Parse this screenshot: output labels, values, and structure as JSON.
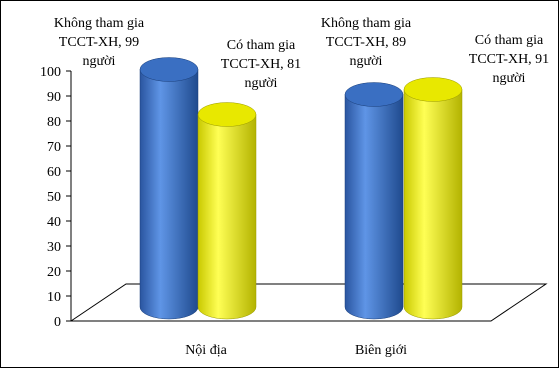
{
  "chart_data": {
    "type": "bar",
    "style": "3d-cylinder",
    "categories": [
      "Nội địa",
      "Biên giới"
    ],
    "ylim": [
      0,
      100
    ],
    "yticks": [
      0,
      10,
      20,
      30,
      40,
      50,
      60,
      70,
      80,
      90,
      100
    ],
    "series": [
      {
        "color": "#3f74c7",
        "values": [
          99,
          89
        ],
        "labels": [
          [
            "Không tham gia",
            "TCCT-XH, 99",
            "người"
          ],
          [
            "Không tham gia",
            "TCCT-XH, 89",
            "người"
          ]
        ]
      },
      {
        "color": "#ffff00",
        "values": [
          81,
          91
        ],
        "labels": [
          [
            "Có tham gia",
            "TCCT-XH, 81",
            "người"
          ],
          [
            "Có tham gia",
            "TCCT-XH, 91",
            "người"
          ]
        ]
      }
    ],
    "grid": false,
    "legend": "none"
  }
}
